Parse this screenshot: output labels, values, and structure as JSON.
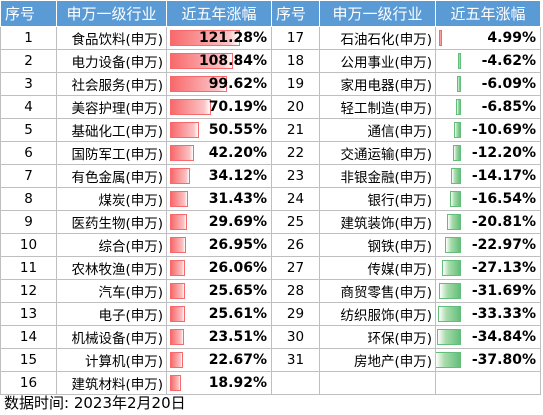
{
  "headers": [
    "序号",
    "申万一级行业",
    "近五年涨幅",
    "序号",
    "申万一级行业",
    "近五年涨幅"
  ],
  "left_rows": [
    {
      "idx": "1",
      "name": "食品饮料(申万)",
      "value": 121.28,
      "label": "121.28%"
    },
    {
      "idx": "2",
      "name": "电力设备(申万)",
      "value": 108.84,
      "label": "108.84%"
    },
    {
      "idx": "3",
      "name": "社会服务(申万)",
      "value": 99.62,
      "label": "99.62%"
    },
    {
      "idx": "4",
      "name": "美容护理(申万)",
      "value": 70.19,
      "label": "70.19%"
    },
    {
      "idx": "5",
      "name": "基础化工(申万)",
      "value": 50.55,
      "label": "50.55%"
    },
    {
      "idx": "6",
      "name": "国防军工(申万)",
      "value": 42.2,
      "label": "42.20%"
    },
    {
      "idx": "7",
      "name": "有色金属(申万)",
      "value": 34.12,
      "label": "34.12%"
    },
    {
      "idx": "8",
      "name": "煤炭(申万)",
      "value": 31.43,
      "label": "31.43%"
    },
    {
      "idx": "9",
      "name": "医药生物(申万)",
      "value": 29.69,
      "label": "29.69%"
    },
    {
      "idx": "10",
      "name": "综合(申万)",
      "value": 26.95,
      "label": "26.95%"
    },
    {
      "idx": "11",
      "name": "农林牧渔(申万)",
      "value": 26.06,
      "label": "26.06%"
    },
    {
      "idx": "12",
      "name": "汽车(申万)",
      "value": 25.65,
      "label": "25.65%"
    },
    {
      "idx": "13",
      "name": "电子(申万)",
      "value": 25.61,
      "label": "25.61%"
    },
    {
      "idx": "14",
      "name": "机械设备(申万)",
      "value": 23.51,
      "label": "23.51%"
    },
    {
      "idx": "15",
      "name": "计算机(申万)",
      "value": 22.67,
      "label": "22.67%"
    },
    {
      "idx": "16",
      "name": "建筑材料(申万)",
      "value": 18.92,
      "label": "18.92%"
    }
  ],
  "right_rows": [
    {
      "idx": "17",
      "name": "石油石化(申万)",
      "value": 4.99,
      "label": "4.99%"
    },
    {
      "idx": "18",
      "name": "公用事业(申万)",
      "value": -4.62,
      "label": "-4.62%"
    },
    {
      "idx": "19",
      "name": "家用电器(申万)",
      "value": -6.09,
      "label": "-6.09%"
    },
    {
      "idx": "20",
      "name": "轻工制造(申万)",
      "value": -6.85,
      "label": "-6.85%"
    },
    {
      "idx": "21",
      "name": "通信(申万)",
      "value": -10.69,
      "label": "-10.69%"
    },
    {
      "idx": "22",
      "name": "交通运输(申万)",
      "value": -12.2,
      "label": "-12.20%"
    },
    {
      "idx": "23",
      "name": "非银金融(申万)",
      "value": -14.17,
      "label": "-14.17%"
    },
    {
      "idx": "24",
      "name": "银行(申万)",
      "value": -16.54,
      "label": "-16.54%"
    },
    {
      "idx": "25",
      "name": "建筑装饰(申万)",
      "value": -20.81,
      "label": "-20.81%"
    },
    {
      "idx": "26",
      "name": "钢铁(申万)",
      "value": -22.97,
      "label": "-22.97%"
    },
    {
      "idx": "27",
      "name": "传媒(申万)",
      "value": -27.13,
      "label": "-27.13%"
    },
    {
      "idx": "28",
      "name": "商贸零售(申万)",
      "value": -31.69,
      "label": "-31.69%"
    },
    {
      "idx": "29",
      "name": "纺织服饰(申万)",
      "value": -33.33,
      "label": "-33.33%"
    },
    {
      "idx": "30",
      "name": "环保(申万)",
      "value": -34.84,
      "label": "-34.84%"
    },
    {
      "idx": "31",
      "name": "房地产(申万)",
      "value": -37.8,
      "label": "-37.80%"
    }
  ],
  "colors": {
    "header_bg": "#5b9bd5",
    "positive_bar": "#f8696b",
    "negative_bar": "#63be7b",
    "grid": "#bfbfbf"
  },
  "footer": "数据时间: 2023年2月20日"
}
